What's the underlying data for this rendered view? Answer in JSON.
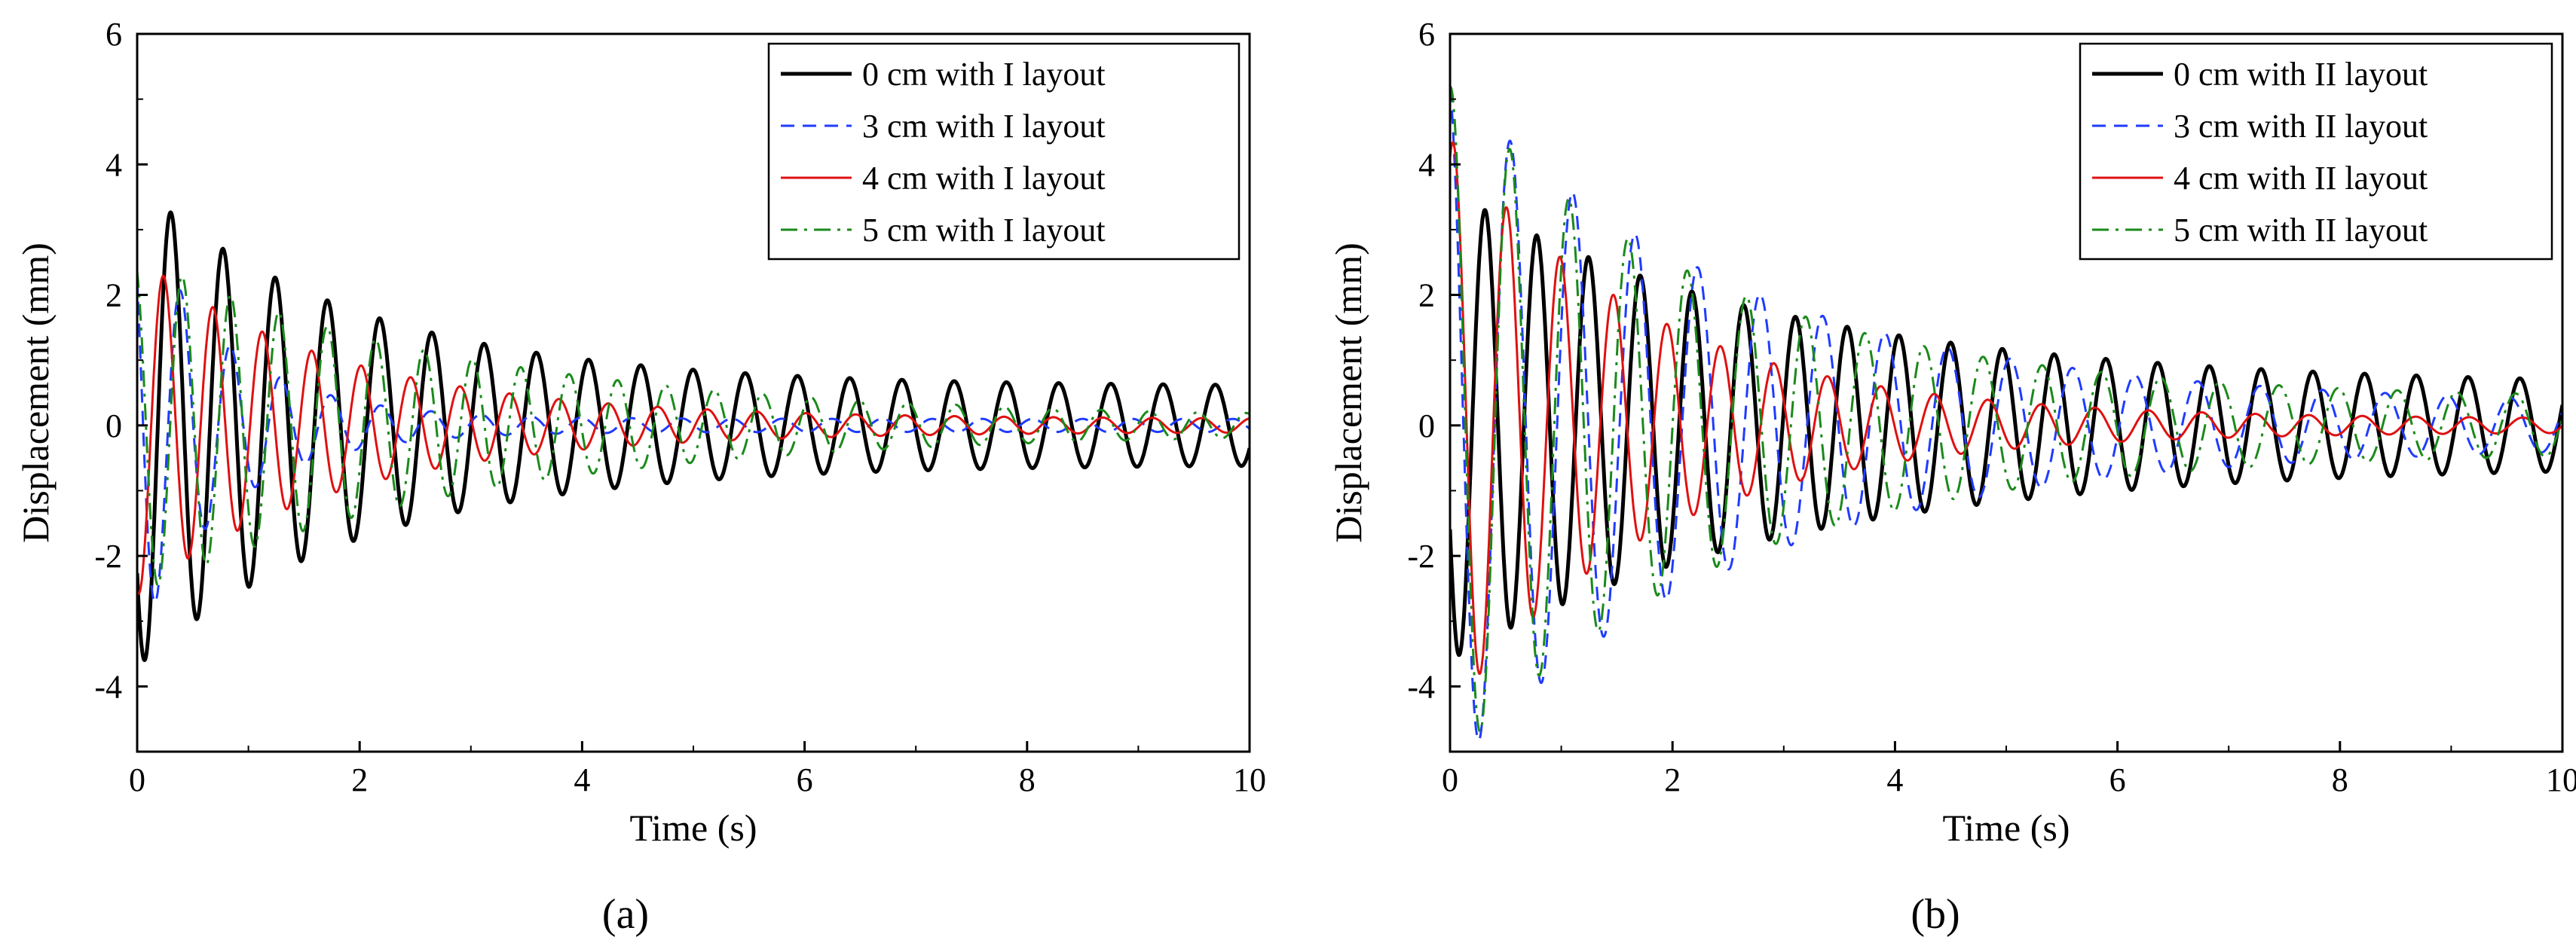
{
  "chart_data": [
    {
      "type": "line",
      "panel_label": "(a)",
      "xlabel": "Time (s)",
      "ylabel": "Displacement (mm)",
      "xlim": [
        0,
        10
      ],
      "ylim": [
        -5,
        6
      ],
      "xticks": [
        0,
        2,
        4,
        6,
        8,
        10
      ],
      "yticks": [
        -4,
        -2,
        0,
        2,
        4,
        6
      ],
      "legend_position": "top-right",
      "series": [
        {
          "name": "0 cm with I layout",
          "color": "#000000",
          "dash": "solid",
          "A0": 3.7,
          "A1": 0.6,
          "tau": 2.0,
          "freq": 2.13,
          "phase": 3.8
        },
        {
          "name": "3 cm with I layout",
          "color": "#1f3bff",
          "dash": "dashed",
          "A0": 3.3,
          "A1": 0.1,
          "tau": 0.8,
          "freq": 2.22,
          "phase": 2.4
        },
        {
          "name": "4 cm with I layout",
          "color": "#e01010",
          "dash": "solid",
          "A0": 2.6,
          "A1": 0.1,
          "tau": 1.8,
          "freq": 2.25,
          "phase": 4.5
        },
        {
          "name": "5 cm with I layout",
          "color": "#1a8a1a",
          "dash": "dashdot",
          "A0": 2.6,
          "A1": 0.1,
          "tau": 3.0,
          "freq": 2.3,
          "phase": 2.0
        }
      ]
    },
    {
      "type": "line",
      "panel_label": "(b)",
      "xlabel": "Time (s)",
      "ylabel": "Displacement (mm)",
      "xlim": [
        0,
        10
      ],
      "ylim": [
        -5,
        6
      ],
      "xticks": [
        0,
        2,
        4,
        6,
        8,
        10
      ],
      "yticks": [
        -4,
        -2,
        0,
        2,
        4,
        6
      ],
      "legend_position": "top-right",
      "series": [
        {
          "name": "0 cm with II layout",
          "color": "#000000",
          "dash": "solid",
          "A0": 3.6,
          "A1": 0.6,
          "tau": 3.0,
          "freq": 2.15,
          "phase": 3.6
        },
        {
          "name": "3 cm with II layout",
          "color": "#1f3bff",
          "dash": "dashed",
          "A0": 5.3,
          "A1": 0.3,
          "tau": 2.6,
          "freq": 1.78,
          "phase": 1.8
        },
        {
          "name": "4 cm with II layout",
          "color": "#e01010",
          "dash": "solid",
          "A0": 4.4,
          "A1": 0.1,
          "tau": 1.8,
          "freq": 2.08,
          "phase": 1.2
        },
        {
          "name": "5 cm with II layout",
          "color": "#1a8a1a",
          "dash": "dashdot",
          "A0": 5.2,
          "A1": 0.4,
          "tau": 2.4,
          "freq": 1.88,
          "phase": 1.5
        }
      ]
    }
  ]
}
